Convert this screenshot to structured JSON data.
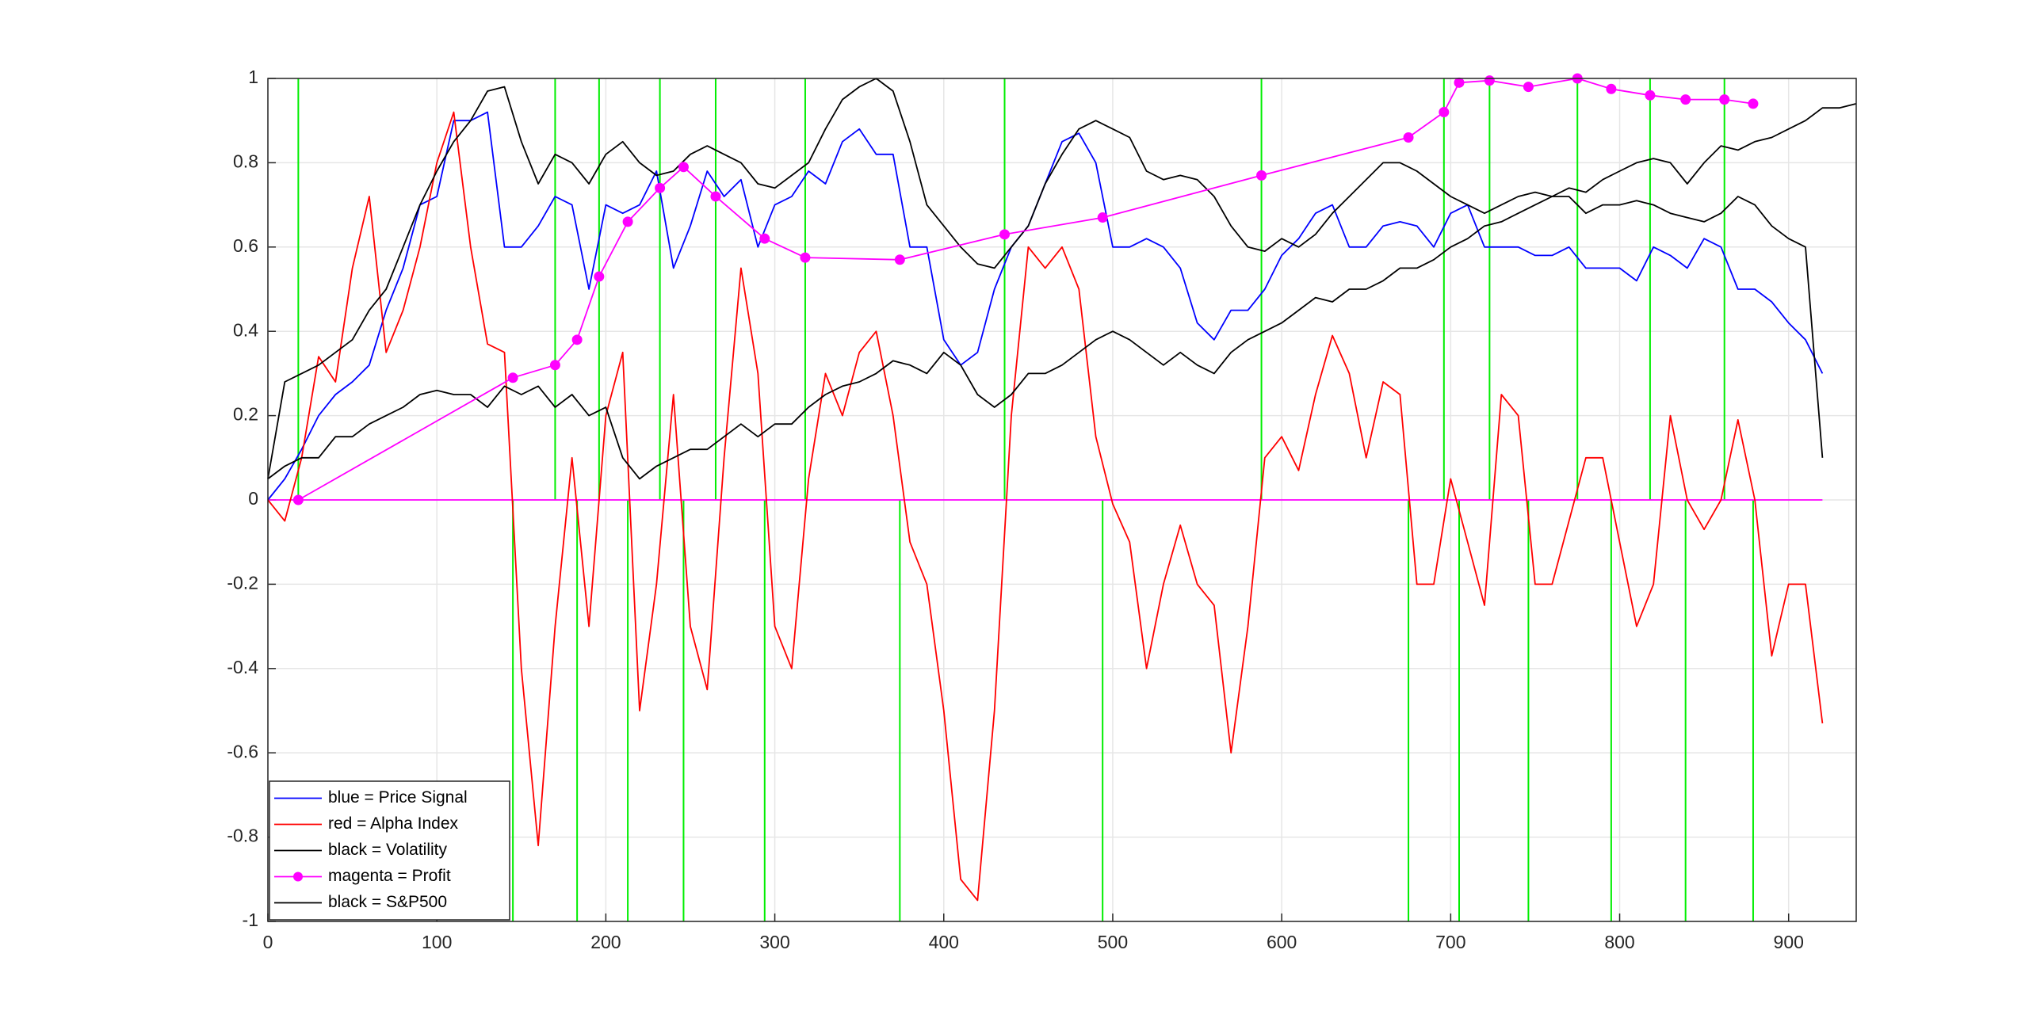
{
  "chart_data": {
    "type": "line",
    "xlim": [
      0,
      940
    ],
    "ylim": [
      -1,
      1
    ],
    "xticks": [
      0,
      100,
      200,
      300,
      400,
      500,
      600,
      700,
      800,
      900
    ],
    "yticks": [
      -1,
      -0.8,
      -0.6,
      -0.4,
      -0.2,
      0,
      0.2,
      0.4,
      0.6,
      0.8,
      1
    ],
    "grid": true,
    "legend": "southwest",
    "x": [
      0,
      10,
      20,
      30,
      40,
      50,
      60,
      70,
      80,
      90,
      100,
      110,
      120,
      130,
      140,
      150,
      160,
      170,
      180,
      190,
      200,
      210,
      220,
      230,
      240,
      250,
      260,
      270,
      280,
      290,
      300,
      310,
      320,
      330,
      340,
      350,
      360,
      370,
      380,
      390,
      400,
      410,
      420,
      430,
      440,
      450,
      460,
      470,
      480,
      490,
      500,
      510,
      520,
      530,
      540,
      550,
      560,
      570,
      580,
      590,
      600,
      610,
      620,
      630,
      640,
      650,
      660,
      670,
      680,
      690,
      700,
      710,
      720,
      730,
      740,
      750,
      760,
      770,
      780,
      790,
      800,
      810,
      820,
      830,
      840,
      850,
      860,
      870,
      880,
      890,
      900,
      910,
      920,
      930,
      940
    ],
    "series": [
      {
        "name": "blue = Price Signal",
        "color": "#0000ff",
        "values": [
          0,
          0.05,
          0.12,
          0.2,
          0.25,
          0.28,
          0.32,
          0.45,
          0.55,
          0.7,
          0.72,
          0.9,
          0.9,
          0.92,
          0.6,
          0.6,
          0.65,
          0.72,
          0.7,
          0.5,
          0.7,
          0.68,
          0.7,
          0.78,
          0.55,
          0.65,
          0.78,
          0.72,
          0.76,
          0.6,
          0.7,
          0.72,
          0.78,
          0.75,
          0.85,
          0.88,
          0.82,
          0.82,
          0.6,
          0.6,
          0.38,
          0.32,
          0.35,
          0.5,
          0.6,
          0.65,
          0.75,
          0.85,
          0.87,
          0.8,
          0.6,
          0.6,
          0.62,
          0.6,
          0.55,
          0.42,
          0.38,
          0.45,
          0.45,
          0.5,
          0.58,
          0.62,
          0.68,
          0.7,
          0.6,
          0.6,
          0.65,
          0.66,
          0.65,
          0.6,
          0.68,
          0.7,
          0.6,
          0.6,
          0.6,
          0.58,
          0.58,
          0.6,
          0.55,
          0.55,
          0.55,
          0.52,
          0.6,
          0.58,
          0.55,
          0.62,
          0.6,
          0.5,
          0.5,
          0.47,
          0.42,
          0.38,
          0.3,
          null,
          null
        ]
      },
      {
        "name": "red = Alpha Index",
        "color": "#ff0000",
        "values": [
          0,
          -0.05,
          0.1,
          0.34,
          0.28,
          0.55,
          0.72,
          0.35,
          0.45,
          0.6,
          0.8,
          0.92,
          0.6,
          0.37,
          0.35,
          -0.4,
          -0.82,
          -0.3,
          0.1,
          -0.3,
          0.2,
          0.35,
          -0.5,
          -0.2,
          0.25,
          -0.3,
          -0.45,
          0.1,
          0.55,
          0.3,
          -0.3,
          -0.4,
          0.05,
          0.3,
          0.2,
          0.35,
          0.4,
          0.2,
          -0.1,
          -0.2,
          -0.5,
          -0.9,
          -0.95,
          -0.5,
          0.2,
          0.6,
          0.55,
          0.6,
          0.5,
          0.15,
          -0.01,
          -0.1,
          -0.4,
          -0.2,
          -0.06,
          -0.2,
          -0.25,
          -0.6,
          -0.3,
          0.1,
          0.15,
          0.07,
          0.25,
          0.39,
          0.3,
          0.1,
          0.28,
          0.25,
          -0.2,
          -0.2,
          0.05,
          -0.1,
          -0.25,
          0.25,
          0.2,
          -0.2,
          -0.2,
          -0.05,
          0.1,
          0.1,
          -0.1,
          -0.3,
          -0.2,
          0.2,
          0,
          -0.07,
          0,
          0.19,
          0,
          -0.37,
          -0.2,
          -0.2,
          -0.53,
          null,
          null
        ]
      },
      {
        "name": "black = Volatility",
        "color": "#000000",
        "values": [
          0.05,
          0.28,
          0.3,
          0.32,
          0.35,
          0.38,
          0.45,
          0.5,
          0.6,
          0.7,
          0.78,
          0.85,
          0.9,
          0.97,
          0.98,
          0.85,
          0.75,
          0.82,
          0.8,
          0.75,
          0.82,
          0.85,
          0.8,
          0.77,
          0.78,
          0.82,
          0.84,
          0.82,
          0.8,
          0.75,
          0.74,
          0.77,
          0.8,
          0.88,
          0.95,
          0.98,
          1,
          0.97,
          0.85,
          0.7,
          0.65,
          0.6,
          0.56,
          0.55,
          0.6,
          0.65,
          0.75,
          0.82,
          0.88,
          0.9,
          0.88,
          0.86,
          0.78,
          0.76,
          0.77,
          0.76,
          0.72,
          0.65,
          0.6,
          0.59,
          0.62,
          0.6,
          0.63,
          0.68,
          0.72,
          0.76,
          0.8,
          0.8,
          0.78,
          0.75,
          0.72,
          0.7,
          0.68,
          0.7,
          0.72,
          0.73,
          0.72,
          0.72,
          0.68,
          0.7,
          0.7,
          0.71,
          0.7,
          0.68,
          0.67,
          0.66,
          0.68,
          0.72,
          0.7,
          0.65,
          0.62,
          0.6,
          0.1,
          null,
          null
        ]
      },
      {
        "name": "magenta = Profit",
        "color": "#ff00ff",
        "marker": true,
        "x": [
          18,
          145,
          170,
          183,
          196,
          213,
          232,
          246,
          265,
          294,
          318,
          374,
          436,
          494,
          588,
          675,
          696,
          705,
          723,
          746,
          775,
          795,
          818,
          839,
          862,
          879
        ],
        "values": [
          0,
          0.29,
          0.32,
          0.38,
          0.53,
          0.66,
          0.74,
          0.79,
          0.72,
          0.62,
          0.575,
          0.57,
          0.63,
          0.67,
          0.77,
          0.86,
          0.92,
          0.99,
          0.995,
          0.98,
          1,
          0.975,
          0.96,
          0.95,
          0.95,
          0.94
        ]
      },
      {
        "name": "black = S&P500",
        "color": "#000000",
        "values": [
          0.05,
          0.08,
          0.1,
          0.1,
          0.15,
          0.15,
          0.18,
          0.2,
          0.22,
          0.25,
          0.26,
          0.25,
          0.25,
          0.22,
          0.27,
          0.25,
          0.27,
          0.22,
          0.25,
          0.2,
          0.22,
          0.1,
          0.05,
          0.08,
          0.1,
          0.12,
          0.12,
          0.15,
          0.18,
          0.15,
          0.18,
          0.18,
          0.22,
          0.25,
          0.27,
          0.28,
          0.3,
          0.33,
          0.32,
          0.3,
          0.35,
          0.32,
          0.25,
          0.22,
          0.25,
          0.3,
          0.3,
          0.32,
          0.35,
          0.38,
          0.4,
          0.38,
          0.35,
          0.32,
          0.35,
          0.32,
          0.3,
          0.35,
          0.38,
          0.4,
          0.42,
          0.45,
          0.48,
          0.47,
          0.5,
          0.5,
          0.52,
          0.55,
          0.55,
          0.57,
          0.6,
          0.62,
          0.65,
          0.66,
          0.68,
          0.7,
          0.72,
          0.74,
          0.73,
          0.76,
          0.78,
          0.8,
          0.81,
          0.8,
          0.75,
          0.8,
          0.84,
          0.83,
          0.85,
          0.86,
          0.88,
          0.9,
          0.93,
          0.93,
          0.94
        ]
      },
      {
        "color": "#00ee00",
        "style": "stem",
        "x": [
          18,
          145,
          170,
          183,
          196,
          213,
          232,
          246,
          265,
          294,
          318,
          374,
          436,
          494,
          588,
          675,
          696,
          705,
          723,
          746,
          775,
          795,
          818,
          839,
          862,
          879
        ],
        "values": [
          1,
          -1,
          1,
          -1,
          1,
          -1,
          1,
          -1,
          1,
          -1,
          1,
          -1,
          1,
          -1,
          1,
          -1,
          1,
          -1,
          1,
          -1,
          1,
          -1,
          1,
          -1,
          1,
          -1
        ]
      },
      {
        "color": "#ff00ff",
        "x": [
          0,
          920
        ],
        "values": [
          0,
          0
        ]
      }
    ]
  }
}
